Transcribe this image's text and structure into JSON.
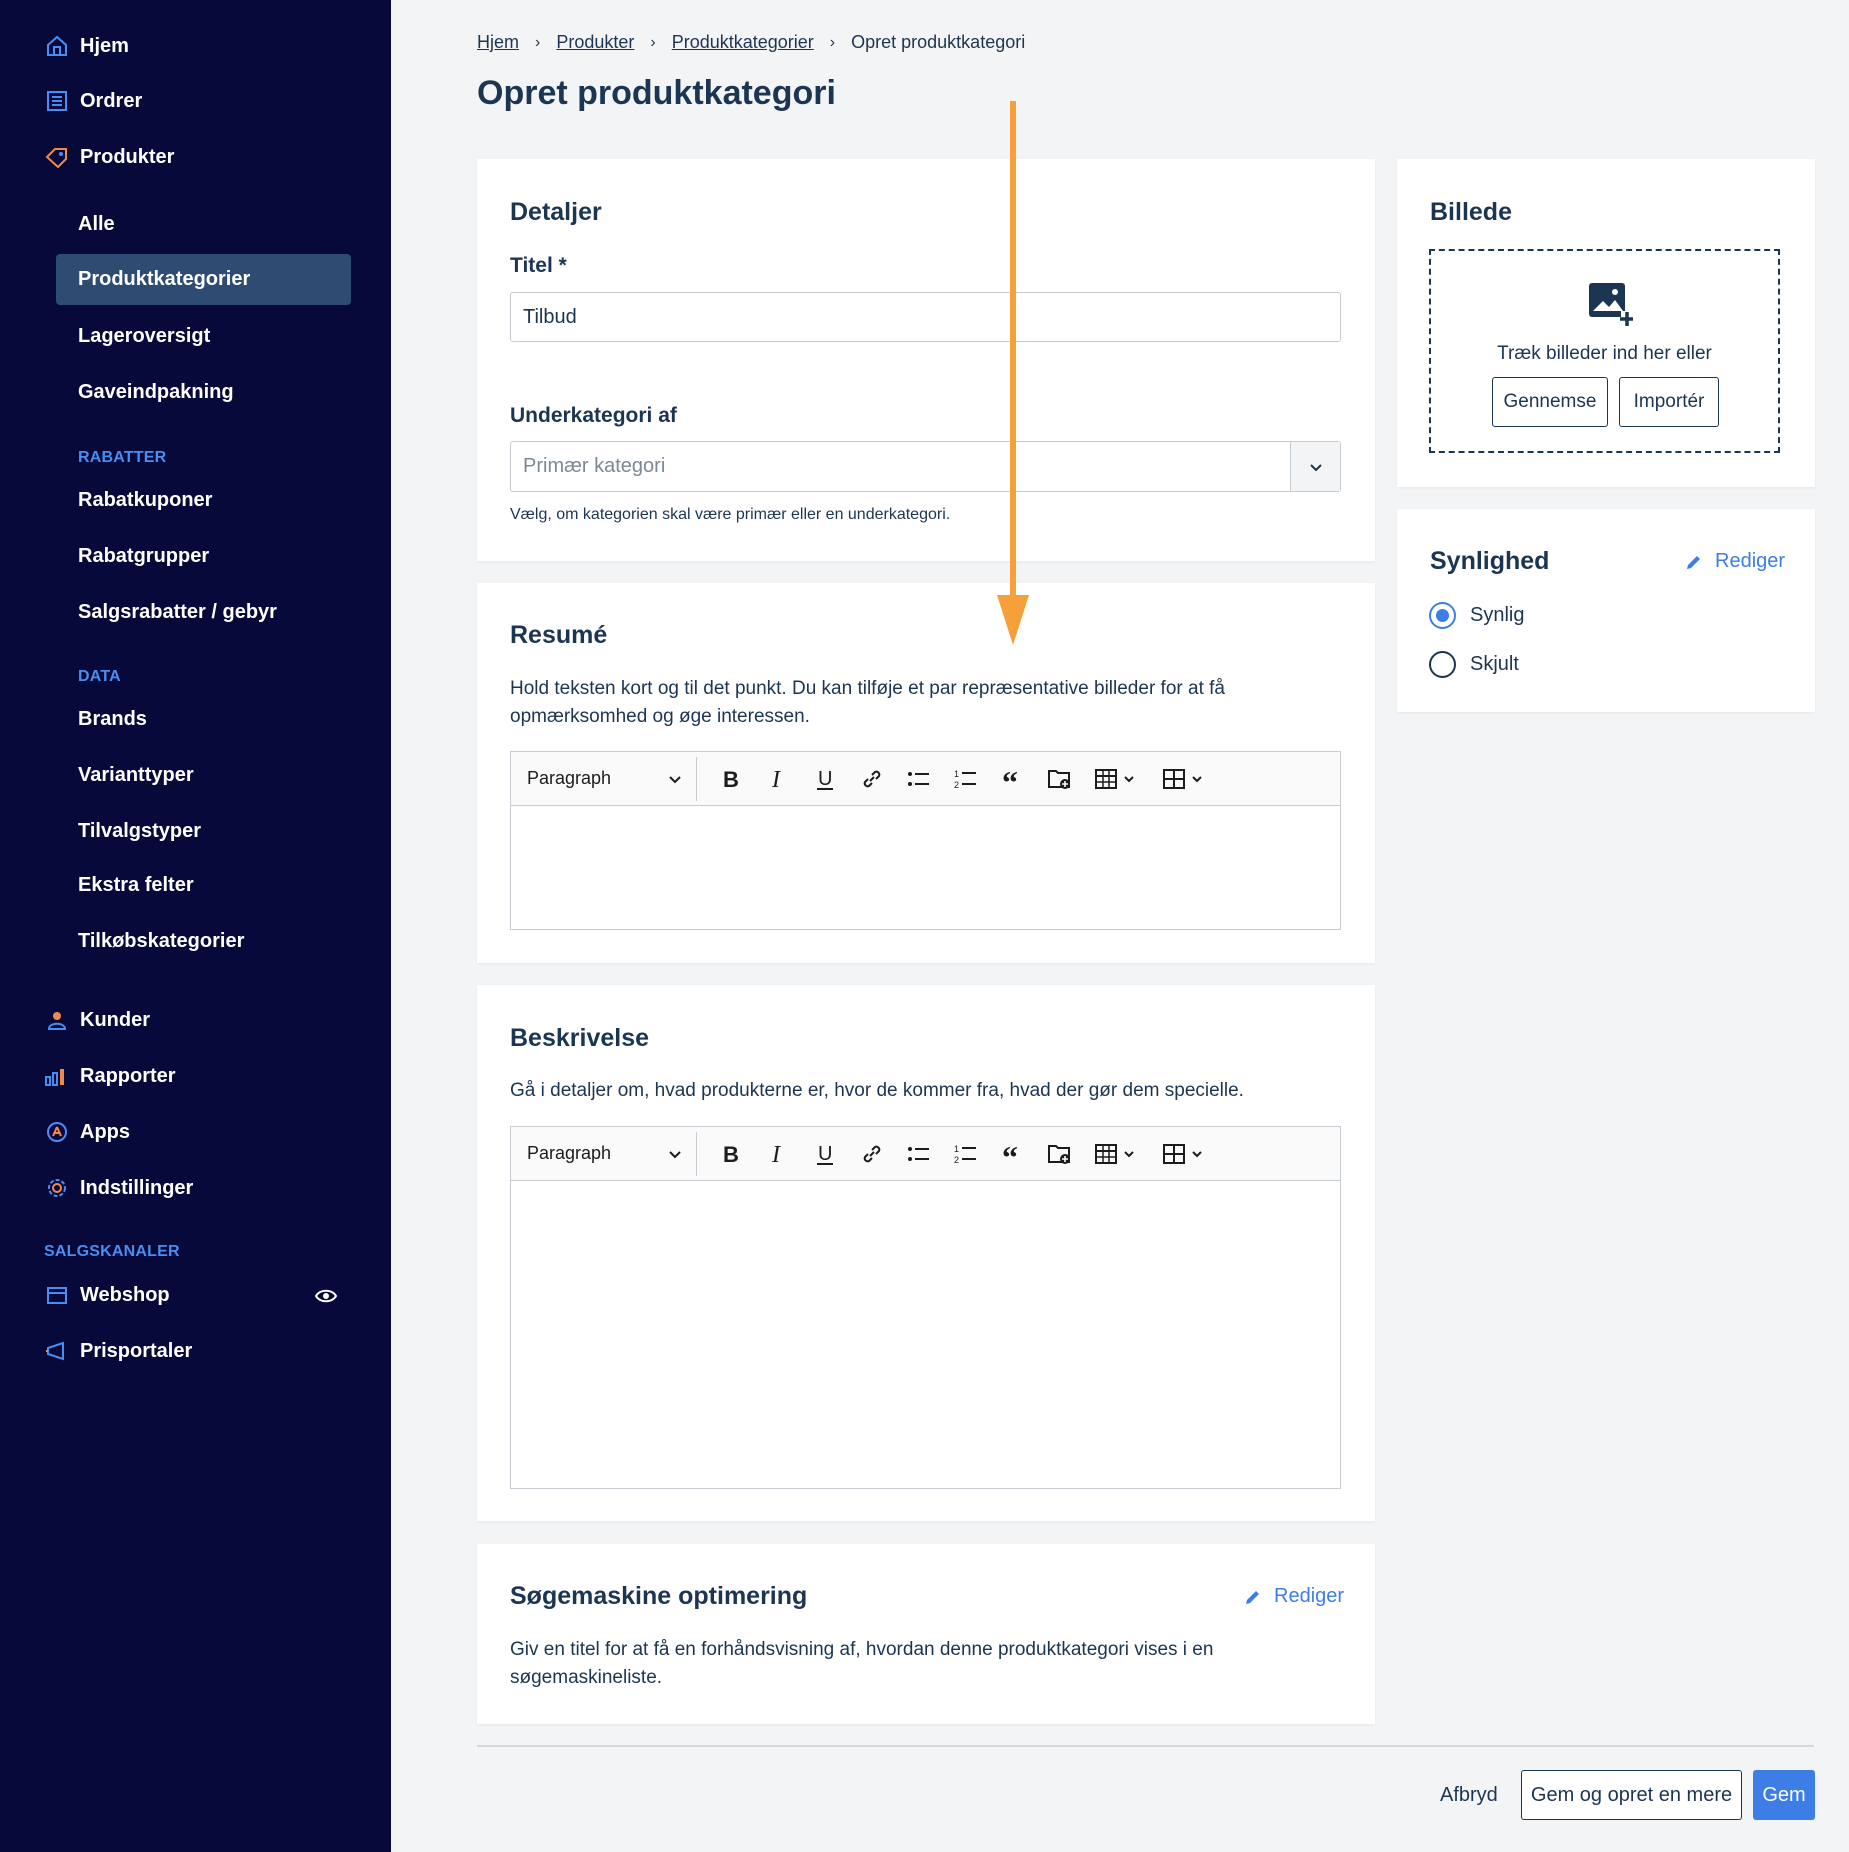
{
  "sidebar": {
    "top_items": [
      {
        "label": "Hjem",
        "icon": "home-icon"
      },
      {
        "label": "Ordrer",
        "icon": "orders-icon"
      },
      {
        "label": "Produkter",
        "icon": "tag-icon"
      }
    ],
    "product_sub": [
      "Alle",
      "Produktkategorier",
      "Lageroversigt",
      "Gaveindpakning"
    ],
    "rabatter_label": "RABATTER",
    "rabatter_items": [
      "Rabatkuponer",
      "Rabatgrupper",
      "Salgsrabatter / gebyr"
    ],
    "data_label": "DATA",
    "data_items": [
      "Brands",
      "Varianttyper",
      "Tilvalgstyper",
      "Ekstra felter",
      "Tilkøbskategorier"
    ],
    "bottom_items": [
      {
        "label": "Kunder",
        "icon": "user-icon"
      },
      {
        "label": "Rapporter",
        "icon": "chart-icon"
      },
      {
        "label": "Apps",
        "icon": "apps-icon"
      },
      {
        "label": "Indstillinger",
        "icon": "gear-icon"
      }
    ],
    "salgskanaler_label": "SALGSKANALER",
    "channels": [
      {
        "label": "Webshop",
        "icon": "store-icon"
      },
      {
        "label": "Prisportaler",
        "icon": "megaphone-icon"
      }
    ],
    "accent_color": "#4a8df0",
    "active_bg": "#2e4b72"
  },
  "breadcrumb": [
    "Hjem",
    "Produkter",
    "Produktkategorier",
    "Opret produktkategori"
  ],
  "page_title": "Opret produktkategori",
  "details": {
    "title": "Detaljer",
    "title_label": "Titel *",
    "title_value": "Tilbud",
    "parent_label": "Underkategori af",
    "parent_placeholder": "Primær kategori",
    "parent_help": "Vælg, om kategorien skal være primær eller en underkategori."
  },
  "summary": {
    "title": "Resumé",
    "description": "Hold teksten kort og til det punkt. Du kan tilføje et par repræsentative billeder for at få opmærksomhed og øge interessen.",
    "editor_style": "Paragraph"
  },
  "description": {
    "title": "Beskrivelse",
    "description": "Gå i detaljer om, hvad produkterne er, hvor de kommer fra, hvad der gør dem specielle.",
    "editor_style": "Paragraph"
  },
  "seo": {
    "title": "Søgemaskine optimering",
    "edit_label": "Rediger",
    "description": "Giv en titel for at få en forhåndsvisning af, hvordan denne produktkategori vises i en søgemaskineliste."
  },
  "image": {
    "title": "Billede",
    "drop_text": "Træk billeder ind her eller",
    "browse_label": "Gennemse",
    "import_label": "Importér"
  },
  "visibility": {
    "title": "Synlighed",
    "edit_label": "Rediger",
    "options": [
      "Synlig",
      "Skjult"
    ],
    "selected": "Synlig"
  },
  "footer": {
    "cancel_label": "Afbryd",
    "save_another_label": "Gem og opret en mere",
    "save_label": "Gem"
  },
  "colors": {
    "primary": "#3d7ee6",
    "text": "#1c3553",
    "annotation_arrow": "#f5a03a"
  }
}
